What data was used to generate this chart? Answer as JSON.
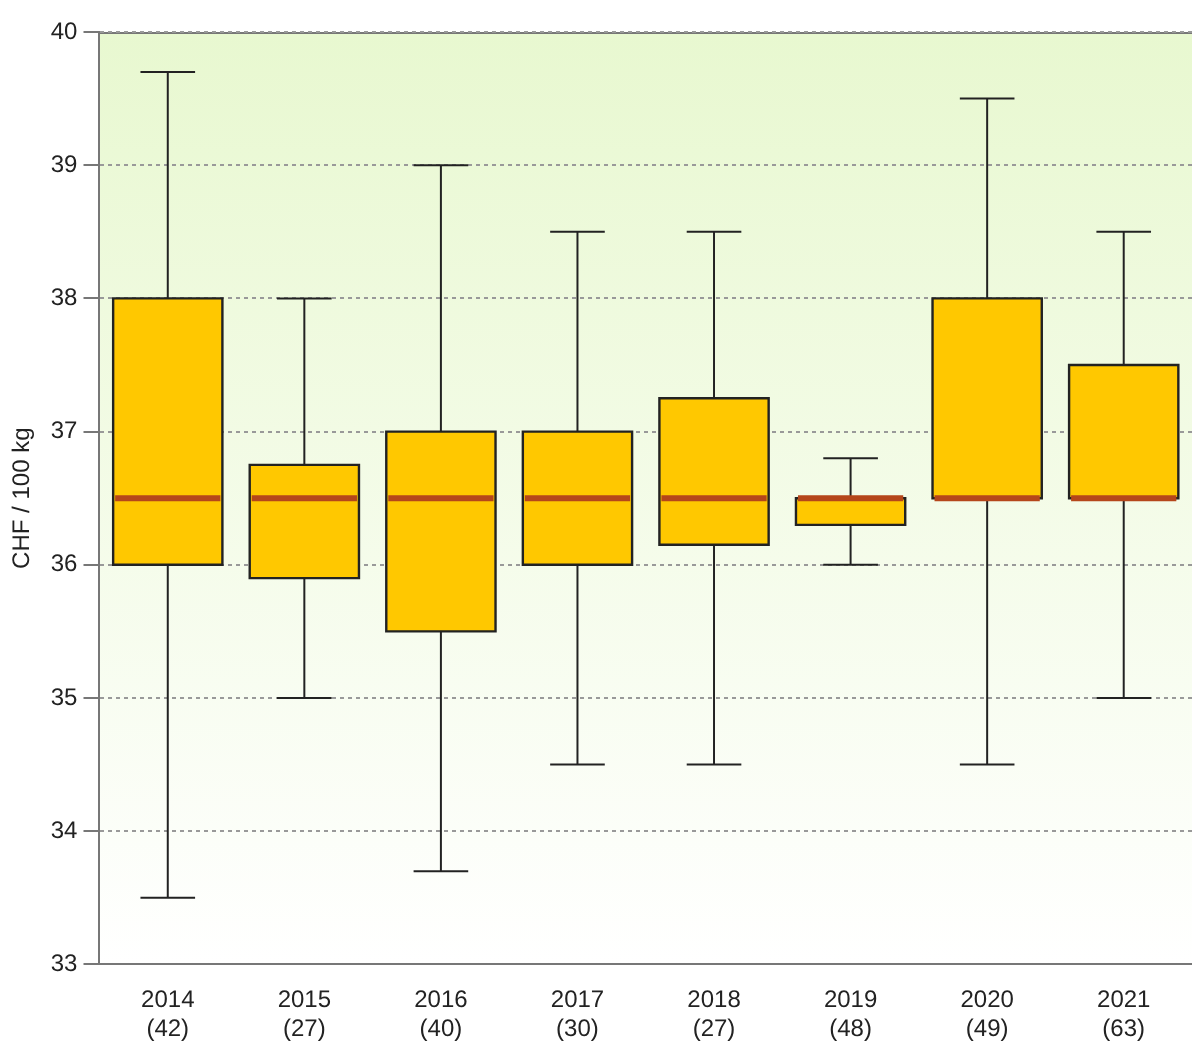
{
  "chart_data": {
    "type": "box",
    "ylabel": "CHF / 100 kg",
    "categories": [
      "2014\n(42)",
      "2015\n(27)",
      "2016\n(40)",
      "2017\n(30)",
      "2018\n(27)",
      "2019\n(48)",
      "2020\n(49)",
      "2021\n(63)"
    ],
    "series": [
      {
        "color": "#ffc800",
        "boxes": [
          {
            "low": 33.5,
            "q1": 36,
            "median": 36.5,
            "q3": 38,
            "high": 39.7
          },
          {
            "low": 35,
            "q1": 35.9,
            "median": 36.5,
            "q3": 36.75,
            "high": 38
          },
          {
            "low": 33.7,
            "q1": 35.5,
            "median": 36.5,
            "q3": 37,
            "high": 39
          },
          {
            "low": 34.5,
            "q1": 36,
            "median": 36.5,
            "q3": 37,
            "high": 38.5
          },
          {
            "low": 34.5,
            "q1": 36.15,
            "median": 36.5,
            "q3": 37.25,
            "high": 38.5
          },
          {
            "low": 36,
            "q1": 36.3,
            "median": 36.5,
            "q3": 36.5,
            "high": 36.8
          },
          {
            "low": 34.5,
            "q1": 36.5,
            "median": 36.5,
            "q3": 38,
            "high": 39.5
          },
          {
            "low": 35,
            "q1": 36.5,
            "median": 36.5,
            "q3": 37.5,
            "high": 38.5
          }
        ]
      }
    ],
    "ylim": [
      33,
      40
    ],
    "yticks": [
      33,
      34,
      35,
      36,
      37,
      38,
      39,
      40
    ],
    "grid": "y",
    "legend": false
  }
}
